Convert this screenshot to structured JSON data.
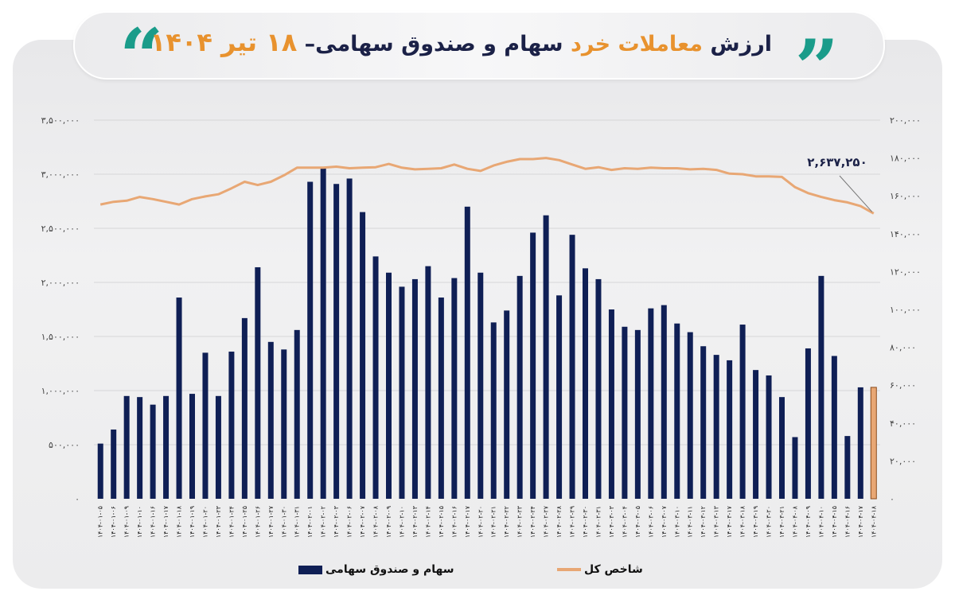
{
  "title": {
    "part1": "ارزش",
    "part2": "معاملات خرد",
    "part3": "سهام و صندوق سهامی–",
    "part4": "۱۸ تیر ۱۴۰۴",
    "full": "ارزش معاملات خرد سهام و صندوق سهامی– ۱۸ تیر ۱۴۰۴",
    "open_quote": "“",
    "close_quote": "”"
  },
  "colors": {
    "bar": "#0f1f55",
    "bar_highlight": "#e8a774",
    "line": "#e8a774",
    "accent": "#e8922e",
    "quote": "#1a9c8a",
    "title_text": "#1b2147"
  },
  "legend": {
    "bars": "سهام و صندوق سهامی",
    "line": "شاخص کل"
  },
  "annotation": {
    "last_index_value": "۲,۶۳۷,۲۵۰"
  },
  "chart_data": {
    "type": "bar",
    "title": "ارزش معاملات خرد سهام و صندوق سهامی– ۱۸ تیر ۱۴۰۴",
    "xlabel": "",
    "ylabel": "",
    "left_axis_ticks": [
      "۰",
      "۵۰۰,۰۰۰",
      "۱,۰۰۰,۰۰۰",
      "۱,۵۰۰,۰۰۰",
      "۲,۰۰۰,۰۰۰",
      "۲,۵۰۰,۰۰۰",
      "۳,۰۰۰,۰۰۰",
      "۳,۵۰۰,۰۰۰"
    ],
    "right_axis_ticks": [
      "۰",
      "۲۰,۰۰۰",
      "۴۰,۰۰۰",
      "۶۰,۰۰۰",
      "۸۰,۰۰۰",
      "۱۰۰,۰۰۰",
      "۱۲۰,۰۰۰",
      "۱۴۰,۰۰۰",
      "۱۶۰,۰۰۰",
      "۱۸۰,۰۰۰",
      "۲۰۰,۰۰۰"
    ],
    "ylim": [
      0,
      3500000
    ],
    "y2lim": [
      0,
      200000
    ],
    "grid": true,
    "legend_position": "bottom",
    "categories": [
      "۱۴۰۴-۰۱-۰۵",
      "۱۴۰۴-۰۱-۰۶",
      "۱۴۰۴-۰۱-۰۹",
      "۱۴۰۴-۰۱-۱۰",
      "۱۴۰۴-۰۱-۱۶",
      "۱۴۰۴-۰۱-۱۷",
      "۱۴۰۴-۰۱-۱۸",
      "۱۴۰۴-۰۱-۱۹",
      "۱۴۰۴-۰۱-۲۰",
      "۱۴۰۴-۰۱-۲۳",
      "۱۴۰۴-۰۱-۲۴",
      "۱۴۰۴-۰۱-۲۵",
      "۱۴۰۴-۰۱-۲۶",
      "۱۴۰۴-۰۱-۲۷",
      "۱۴۰۴-۰۱-۳۰",
      "۱۴۰۴-۰۱-۳۱",
      "۱۴۰۴-۰۲-۰۱",
      "۱۴۰۴-۰۲-۰۲",
      "۱۴۰۴-۰۲-۰۳",
      "۱۴۰۴-۰۲-۰۶",
      "۱۴۰۴-۰۲-۰۷",
      "۱۴۰۴-۰۲-۰۸",
      "۱۴۰۴-۰۲-۰۹",
      "۱۴۰۴-۰۲-۱۰",
      "۱۴۰۴-۰۲-۱۳",
      "۱۴۰۴-۰۲-۱۴",
      "۱۴۰۴-۰۲-۱۵",
      "۱۴۰۴-۰۲-۱۶",
      "۱۴۰۴-۰۲-۱۷",
      "۱۴۰۴-۰۲-۲۰",
      "۱۴۰۴-۰۲-۲۱",
      "۱۴۰۴-۰۲-۲۲",
      "۱۴۰۴-۰۲-۲۳",
      "۱۴۰۴-۰۲-۲۴",
      "۱۴۰۴-۰۲-۲۷",
      "۱۴۰۴-۰۲-۲۸",
      "۱۴۰۴-۰۲-۲۹",
      "۱۴۰۴-۰۲-۳۰",
      "۱۴۰۴-۰۲-۳۱",
      "۱۴۰۴-۰۳-۰۳",
      "۱۴۰۴-۰۳-۰۴",
      "۱۴۰۴-۰۳-۰۵",
      "۱۴۰۴-۰۳-۰۶",
      "۱۴۰۴-۰۳-۰۷",
      "۱۴۰۴-۰۳-۱۰",
      "۱۴۰۴-۰۳-۱۱",
      "۱۴۰۴-۰۳-۱۲",
      "۱۴۰۴-۰۳-۱۳",
      "۱۴۰۴-۰۳-۱۷",
      "۱۴۰۴-۰۳-۱۸",
      "۱۴۰۴-۰۳-۱۹",
      "۱۴۰۴-۰۳-۲۰",
      "۱۴۰۴-۰۳-۲۱",
      "۱۴۰۴-۰۴-۰۸",
      "۱۴۰۴-۰۴-۰۹",
      "۱۴۰۴-۰۴-۱۰",
      "۱۴۰۴-۰۴-۱۵",
      "۱۴۰۴-۰۴-۱۶",
      "۱۴۰۴-۰۴-۱۷",
      "۱۴۰۴-۰۴-۱۸"
    ],
    "series": [
      {
        "name": "سهام و صندوق سهامی",
        "type": "bar",
        "axis": "left",
        "values": [
          510000,
          640000,
          950000,
          940000,
          870000,
          950000,
          1860000,
          970000,
          1350000,
          950000,
          1360000,
          1670000,
          2140000,
          1450000,
          1380000,
          1560000,
          2930000,
          3070000,
          2910000,
          2960000,
          2650000,
          2240000,
          2090000,
          1960000,
          2030000,
          2150000,
          1860000,
          2040000,
          2700000,
          2090000,
          1630000,
          1740000,
          2060000,
          2460000,
          2620000,
          1880000,
          2440000,
          2130000,
          2030000,
          1750000,
          1590000,
          1560000,
          1760000,
          1790000,
          1620000,
          1540000,
          1410000,
          1330000,
          1280000,
          1610000,
          1190000,
          1140000,
          940000,
          570000,
          1390000,
          2060000,
          1320000,
          580000,
          1030000,
          1030000
        ],
        "highlight_last": true
      },
      {
        "name": "شاخص کل",
        "type": "line",
        "axis": "left-scale",
        "values": [
          2720000,
          2745000,
          2755000,
          2790000,
          2770000,
          2745000,
          2720000,
          2770000,
          2795000,
          2815000,
          2870000,
          2930000,
          2900000,
          2930000,
          2990000,
          3060000,
          3060000,
          3060000,
          3070000,
          3055000,
          3060000,
          3065000,
          3095000,
          3060000,
          3045000,
          3050000,
          3055000,
          3090000,
          3050000,
          3030000,
          3080000,
          3115000,
          3140000,
          3140000,
          3150000,
          3130000,
          3090000,
          3050000,
          3065000,
          3040000,
          3055000,
          3050000,
          3060000,
          3055000,
          3055000,
          3045000,
          3050000,
          3040000,
          3005000,
          3000000,
          2980000,
          2980000,
          2975000,
          2880000,
          2825000,
          2790000,
          2760000,
          2740000,
          2705000,
          2637250
        ]
      }
    ],
    "annotations": [
      {
        "text": "۲,۶۳۷,۲۵۰",
        "target": "last point of شاخص کل"
      }
    ]
  }
}
